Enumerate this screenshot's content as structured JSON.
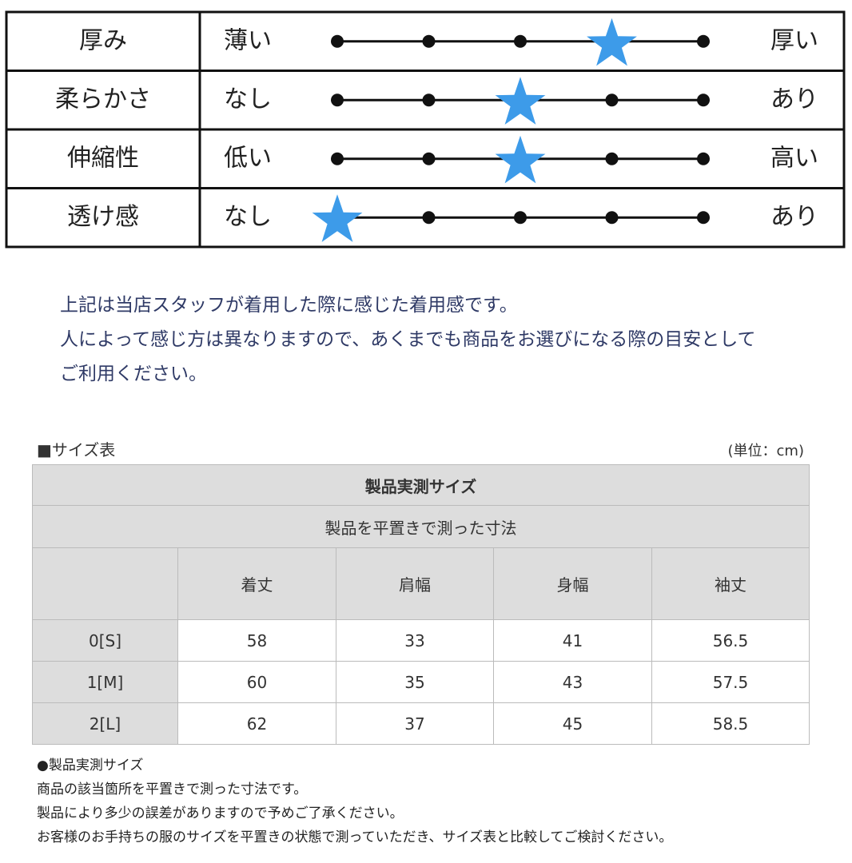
{
  "feel": {
    "rows": [
      {
        "label": "厚み",
        "low": "薄い",
        "high": "厚い",
        "level": 4
      },
      {
        "label": "柔らかさ",
        "low": "なし",
        "high": "あり",
        "level": 3
      },
      {
        "label": "伸縮性",
        "low": "低い",
        "high": "高い",
        "level": 3
      },
      {
        "label": "透け感",
        "low": "なし",
        "high": "あり",
        "level": 1
      }
    ]
  },
  "note": [
    "上記は当店スタッフが着用した際に感じた着用感です。",
    "人によって感じ方は異なりますので、あくまでも商品をお選びになる際の目安として",
    "ご利用ください。"
  ],
  "size_table": {
    "title": "■サイズ表",
    "unit": "(単位：cm)",
    "header": "製品実測サイズ",
    "subheader": "製品を平置きで測った寸法",
    "columns": [
      "着丈",
      "肩幅",
      "身幅",
      "袖丈"
    ],
    "rows": [
      {
        "label": "0[S]",
        "values": [
          58,
          33,
          41,
          56.5
        ]
      },
      {
        "label": "1[M]",
        "values": [
          60,
          35,
          43,
          57.5
        ]
      },
      {
        "label": "2[L]",
        "values": [
          62,
          37,
          45,
          58.5
        ]
      }
    ]
  },
  "footnotes": [
    "●製品実測サイズ",
    "商品の該当箇所を平置きで測った寸法です。",
    "製品により多少の誤差がありますので予めご了承ください。",
    "お客様のお手持ちの服のサイズを平置きの状態で測っていただき、サイズ表と比較してご検討ください。"
  ]
}
